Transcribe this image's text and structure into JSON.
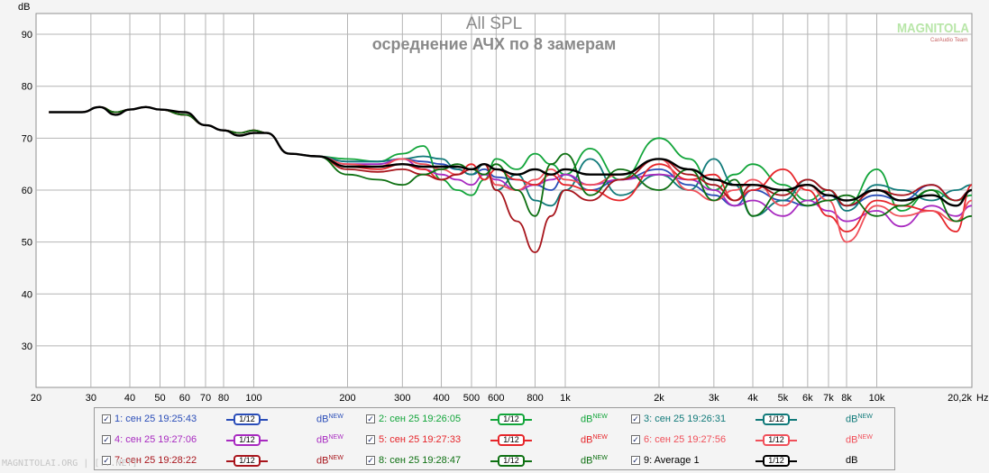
{
  "chart_data": {
    "type": "line",
    "title": "All SPL",
    "subtitle": "осреднение АЧХ по 8 замерам",
    "ylabel": "dB",
    "xlabel": "",
    "x_unit_label": "Hz",
    "x_scale": "log",
    "xlim": [
      20,
      20200
    ],
    "ylim": [
      22,
      94
    ],
    "grid": true,
    "y_ticks": [
      30,
      40,
      50,
      60,
      70,
      80,
      90
    ],
    "x_ticks": [
      {
        "v": 20,
        "l": "20"
      },
      {
        "v": 30,
        "l": "30"
      },
      {
        "v": 40,
        "l": "40"
      },
      {
        "v": 50,
        "l": "50"
      },
      {
        "v": 60,
        "l": "60"
      },
      {
        "v": 70,
        "l": "70"
      },
      {
        "v": 80,
        "l": "80"
      },
      {
        "v": 100,
        "l": "100"
      },
      {
        "v": 200,
        "l": "200"
      },
      {
        "v": 300,
        "l": "300"
      },
      {
        "v": 400,
        "l": "400"
      },
      {
        "v": 500,
        "l": "500"
      },
      {
        "v": 600,
        "l": "600"
      },
      {
        "v": 800,
        "l": "800"
      },
      {
        "v": 1000,
        "l": "1k"
      },
      {
        "v": 2000,
        "l": "2k"
      },
      {
        "v": 3000,
        "l": "3k"
      },
      {
        "v": 4000,
        "l": "4k"
      },
      {
        "v": 5000,
        "l": "5k"
      },
      {
        "v": 6000,
        "l": "6k"
      },
      {
        "v": 7000,
        "l": "7k"
      },
      {
        "v": 8000,
        "l": "8k"
      },
      {
        "v": 10000,
        "l": "10k"
      },
      {
        "v": 20200,
        "l": "20,2k"
      }
    ],
    "series": [
      {
        "name": "1: сен 25 19:25:43",
        "color": "#2a4db8",
        "x": [
          22,
          28,
          32,
          36,
          40,
          45,
          50,
          60,
          70,
          80,
          90,
          100,
          110,
          130,
          160,
          200,
          250,
          300,
          350,
          400,
          450,
          500,
          550,
          600,
          700,
          800,
          900,
          1000,
          1200,
          1500,
          2000,
          2500,
          3000,
          3500,
          4000,
          5000,
          6000,
          7000,
          8000,
          10000,
          12000,
          15000,
          18000,
          20200
        ],
        "y": [
          75,
          75,
          76,
          75,
          75.5,
          76,
          75.5,
          74.5,
          72.5,
          71.5,
          71,
          71.5,
          71,
          67,
          66.5,
          65.5,
          65.5,
          66,
          65.5,
          65,
          64,
          63,
          64,
          62.5,
          62,
          61,
          60,
          63,
          60,
          62,
          64,
          61,
          59,
          57,
          60,
          58,
          57,
          59,
          57,
          59,
          58,
          61,
          58,
          60
        ]
      },
      {
        "name": "2: сен 25 19:26:05",
        "color": "#12a53a",
        "x": [
          22,
          28,
          32,
          36,
          40,
          45,
          50,
          60,
          70,
          80,
          90,
          100,
          110,
          130,
          160,
          200,
          250,
          300,
          350,
          400,
          450,
          500,
          550,
          600,
          700,
          800,
          900,
          1000,
          1200,
          1500,
          2000,
          2500,
          3000,
          3500,
          4000,
          5000,
          6000,
          7000,
          8000,
          10000,
          12000,
          15000,
          18000,
          20200
        ],
        "y": [
          75,
          75,
          76,
          75,
          75.5,
          76,
          75.5,
          74.5,
          72.5,
          71.5,
          71,
          71.5,
          71,
          67,
          66.5,
          66,
          65.5,
          67,
          68.5,
          62,
          60,
          59,
          62,
          66,
          64,
          67,
          65,
          63,
          68,
          62,
          70,
          66,
          60,
          63,
          65,
          61,
          58,
          60,
          57,
          64,
          56,
          60,
          58,
          59
        ]
      },
      {
        "name": "3: сен 25 19:26:31",
        "color": "#117a7a",
        "x": [
          22,
          28,
          32,
          36,
          40,
          45,
          50,
          60,
          70,
          80,
          90,
          100,
          110,
          130,
          160,
          200,
          250,
          300,
          350,
          400,
          450,
          500,
          550,
          600,
          700,
          800,
          900,
          1000,
          1200,
          1500,
          2000,
          2500,
          3000,
          3500,
          4000,
          5000,
          6000,
          7000,
          8000,
          10000,
          12000,
          15000,
          18000,
          20200
        ],
        "y": [
          75,
          75,
          76,
          75,
          75.5,
          76,
          75.5,
          74.5,
          72.5,
          71.5,
          71,
          71.5,
          71,
          67,
          66.5,
          65.5,
          65.5,
          66,
          66.5,
          66,
          64,
          63,
          65,
          60,
          63,
          58,
          57,
          60,
          66,
          59,
          63,
          60,
          66,
          61,
          55,
          58,
          62,
          60,
          56,
          61,
          60,
          58,
          60,
          61
        ]
      },
      {
        "name": "4: сен 25 19:27:06",
        "color": "#a82ac0",
        "x": [
          22,
          28,
          32,
          36,
          40,
          45,
          50,
          60,
          70,
          80,
          90,
          100,
          110,
          130,
          160,
          200,
          250,
          300,
          350,
          400,
          450,
          500,
          550,
          600,
          700,
          800,
          900,
          1000,
          1200,
          1500,
          2000,
          2500,
          3000,
          3500,
          4000,
          5000,
          6000,
          7000,
          8000,
          10000,
          12000,
          15000,
          18000,
          20200
        ],
        "y": [
          75,
          75,
          76,
          75,
          75.5,
          76,
          75.5,
          74.5,
          72.5,
          71.5,
          71,
          71.5,
          71,
          67,
          66.5,
          65,
          65,
          66,
          64,
          63,
          62,
          61,
          63,
          62,
          60,
          61,
          62,
          63,
          61,
          62,
          63,
          62,
          60,
          57,
          58,
          55,
          58,
          56,
          54,
          56,
          53,
          57,
          55,
          57
        ]
      },
      {
        "name": "5: сен 25 19:27:33",
        "color": "#e6252a",
        "x": [
          22,
          28,
          32,
          36,
          40,
          45,
          50,
          60,
          70,
          80,
          90,
          100,
          110,
          130,
          160,
          200,
          250,
          300,
          350,
          400,
          450,
          500,
          550,
          600,
          700,
          800,
          900,
          1000,
          1200,
          1500,
          2000,
          2500,
          3000,
          3500,
          4000,
          5000,
          6000,
          7000,
          8000,
          10000,
          12000,
          15000,
          18000,
          20200
        ],
        "y": [
          75,
          75,
          76,
          75,
          75.5,
          76,
          75.5,
          74.5,
          72.5,
          71.5,
          71,
          71.5,
          71,
          67,
          66.5,
          64.5,
          64,
          65,
          64,
          62,
          63,
          65,
          62,
          64,
          62,
          61,
          63,
          61,
          60,
          58,
          65,
          62,
          63,
          58,
          60,
          64,
          60,
          55,
          52,
          58,
          57,
          56,
          52,
          61
        ]
      },
      {
        "name": "6: сен 25 19:27:56",
        "color": "#f0505a",
        "x": [
          22,
          28,
          32,
          36,
          40,
          45,
          50,
          60,
          70,
          80,
          90,
          100,
          110,
          130,
          160,
          200,
          250,
          300,
          350,
          400,
          450,
          500,
          550,
          600,
          700,
          800,
          900,
          1000,
          1200,
          1500,
          2000,
          2500,
          3000,
          3500,
          4000,
          5000,
          6000,
          7000,
          8000,
          10000,
          12000,
          15000,
          18000,
          20200
        ],
        "y": [
          75,
          75,
          76,
          75,
          75.5,
          76,
          75.5,
          74.5,
          72.5,
          71.5,
          71,
          71.5,
          71,
          67,
          66.5,
          65,
          64.5,
          66,
          65,
          64,
          63,
          64,
          65,
          61,
          60,
          62,
          64,
          62,
          61,
          63,
          66,
          60,
          58,
          60,
          62,
          57,
          61,
          58,
          50,
          57,
          55,
          56,
          54,
          58
        ]
      },
      {
        "name": "7: сен 25 19:28:22",
        "color": "#a8151c",
        "x": [
          22,
          28,
          32,
          36,
          40,
          45,
          50,
          60,
          70,
          80,
          90,
          100,
          110,
          130,
          160,
          200,
          250,
          300,
          350,
          400,
          450,
          500,
          550,
          600,
          700,
          800,
          900,
          1000,
          1200,
          1500,
          2000,
          2500,
          3000,
          3500,
          4000,
          5000,
          6000,
          7000,
          8000,
          10000,
          12000,
          15000,
          18000,
          20200
        ],
        "y": [
          75,
          75,
          76,
          75,
          75.5,
          76,
          75.5,
          74.5,
          72.5,
          71.5,
          71,
          71.5,
          71,
          67,
          66.5,
          64,
          63.5,
          64,
          63,
          62,
          63,
          64,
          65,
          60,
          54,
          48,
          55,
          60,
          58,
          62,
          66,
          63,
          61,
          58,
          61,
          59,
          62,
          60,
          57,
          60,
          59,
          61,
          58,
          60
        ]
      },
      {
        "name": "8: сен 25 19:28:47",
        "color": "#0e7012",
        "x": [
          22,
          28,
          32,
          36,
          40,
          45,
          50,
          60,
          70,
          80,
          90,
          100,
          110,
          130,
          160,
          200,
          250,
          300,
          350,
          400,
          450,
          500,
          550,
          600,
          700,
          800,
          900,
          1000,
          1200,
          1500,
          2000,
          2500,
          3000,
          3500,
          4000,
          5000,
          6000,
          7000,
          8000,
          10000,
          12000,
          15000,
          18000,
          20200
        ],
        "y": [
          75,
          75,
          76,
          75,
          75.5,
          76,
          75.5,
          74.5,
          72.5,
          71.5,
          71,
          71.5,
          71,
          67,
          66.5,
          63,
          62,
          61,
          63,
          64,
          65,
          64,
          63,
          65,
          60,
          55,
          65,
          67,
          59,
          64,
          60,
          64,
          58,
          62,
          55,
          60,
          57,
          58,
          59,
          55,
          57,
          60,
          54,
          55
        ]
      },
      {
        "name": "9: Average 1",
        "color": "#000000",
        "x": [
          22,
          28,
          32,
          36,
          40,
          45,
          50,
          60,
          70,
          80,
          90,
          100,
          110,
          130,
          160,
          200,
          250,
          300,
          350,
          400,
          450,
          500,
          550,
          600,
          700,
          800,
          900,
          1000,
          1200,
          1500,
          2000,
          2500,
          3000,
          3500,
          4000,
          5000,
          6000,
          7000,
          8000,
          10000,
          12000,
          15000,
          18000,
          20200
        ],
        "y": [
          75,
          75,
          76,
          74.5,
          75.5,
          76,
          75.5,
          75,
          72.5,
          71.5,
          70.5,
          71,
          71,
          67,
          66.5,
          64.5,
          64.5,
          65,
          64.5,
          64.5,
          64.5,
          64,
          65,
          64,
          63,
          64,
          63,
          64,
          63,
          63,
          66,
          64,
          62,
          61,
          61,
          60,
          61,
          59,
          58,
          60,
          58,
          59,
          57,
          60
        ]
      }
    ]
  },
  "legend": [
    {
      "check": "✓",
      "name": "1: сен 25 19:25:43",
      "badge": "1/12",
      "unit": "dB",
      "unit_sup": "NEW"
    },
    {
      "check": "✓",
      "name": "2: сен 25 19:26:05",
      "badge": "1/12",
      "unit": "dB",
      "unit_sup": "NEW"
    },
    {
      "check": "✓",
      "name": "3: сен 25 19:26:31",
      "badge": "1/12",
      "unit": "dB",
      "unit_sup": "NEW"
    },
    {
      "check": "✓",
      "name": "4: сен 25 19:27:06",
      "badge": "1/12",
      "unit": "dB",
      "unit_sup": "NEW"
    },
    {
      "check": "✓",
      "name": "5: сен 25 19:27:33",
      "badge": "1/12",
      "unit": "dB",
      "unit_sup": "NEW"
    },
    {
      "check": "✓",
      "name": "6: сен 25 19:27:56",
      "badge": "1/12",
      "unit": "dB",
      "unit_sup": "NEW"
    },
    {
      "check": "✓",
      "name": "7: сен 25 19:28:22",
      "badge": "1/12",
      "unit": "dB",
      "unit_sup": "NEW"
    },
    {
      "check": "✓",
      "name": "8: сен 25 19:28:47",
      "badge": "1/12",
      "unit": "dB",
      "unit_sup": "NEW"
    },
    {
      "check": "✓",
      "name": "9: Average 1",
      "badge": "1/12",
      "unit": "dB",
      "unit_sup": ""
    }
  ],
  "logo": {
    "text": "MAGNITOLA",
    "sub": "CarAudio Team"
  },
  "watermark": "MAGNITOLAI.ORG | [...NET]"
}
